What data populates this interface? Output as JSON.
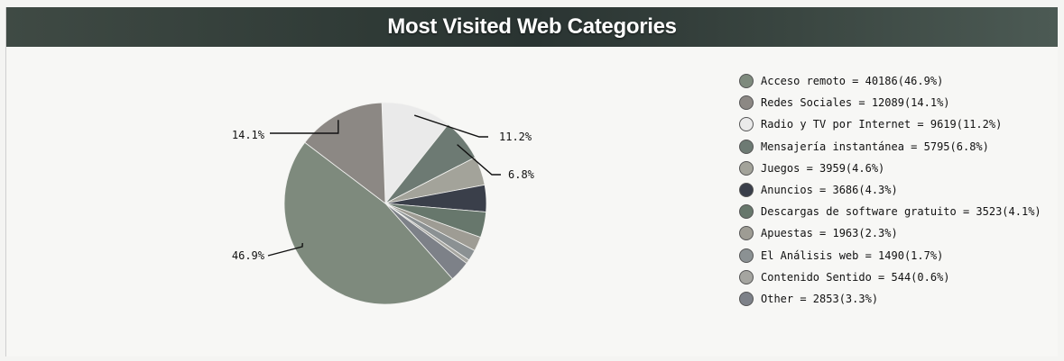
{
  "chart_data": {
    "type": "pie",
    "title": "Most Visited Web Categories",
    "series": [
      {
        "name": "Acceso remoto",
        "value": 40186,
        "percent_label": "46.9%",
        "legend": "Acceso remoto = 40186(46.9%)",
        "color": "#7e8a7d"
      },
      {
        "name": "Redes Sociales",
        "value": 12089,
        "percent_label": "14.1%",
        "legend": "Redes Sociales = 12089(14.1%)",
        "color": "#8c8884"
      },
      {
        "name": "Radio y TV por Internet",
        "value": 9619,
        "percent_label": "11.2%",
        "legend": "Radio y TV por Internet = 9619(11.2%)",
        "color": "#eaeaea"
      },
      {
        "name": "Mensajería instantánea",
        "value": 5795,
        "percent_label": "6.8%",
        "legend": "Mensajería instantánea = 5795(6.8%)",
        "color": "#6d7a73"
      },
      {
        "name": "Juegos",
        "value": 3959,
        "percent_label": "4.6%",
        "legend": "Juegos = 3959(4.6%)",
        "color": "#a3a39a"
      },
      {
        "name": "Anuncios",
        "value": 3686,
        "percent_label": "4.3%",
        "legend": "Anuncios = 3686(4.3%)",
        "color": "#3a3f4a"
      },
      {
        "name": "Descargas de software gratuito",
        "value": 3523,
        "percent_label": "4.1%",
        "legend": "Descargas de software gratuito = 3523(4.1%)",
        "color": "#67776c"
      },
      {
        "name": "Apuestas",
        "value": 1963,
        "percent_label": "2.3%",
        "legend": "Apuestas = 1963(2.3%)",
        "color": "#9e9c94"
      },
      {
        "name": "El Análisis web",
        "value": 1490,
        "percent_label": "1.7%",
        "legend": "El Análisis web = 1490(1.7%)",
        "color": "#8b9193"
      },
      {
        "name": "Contenido Sentido",
        "value": 544,
        "percent_label": "0.6%",
        "legend": "Contenido Sentido = 544(0.6%)",
        "color": "#a5a5a0"
      },
      {
        "name": "Other",
        "value": 2853,
        "percent_label": "3.3%",
        "legend": "Other = 2853(3.3%)",
        "color": "#7d8188"
      }
    ],
    "shown_labels": [
      "Acceso remoto",
      "Redes Sociales",
      "Radio y TV por Internet",
      "Mensajería instantánea"
    ],
    "legend_position": "right"
  }
}
